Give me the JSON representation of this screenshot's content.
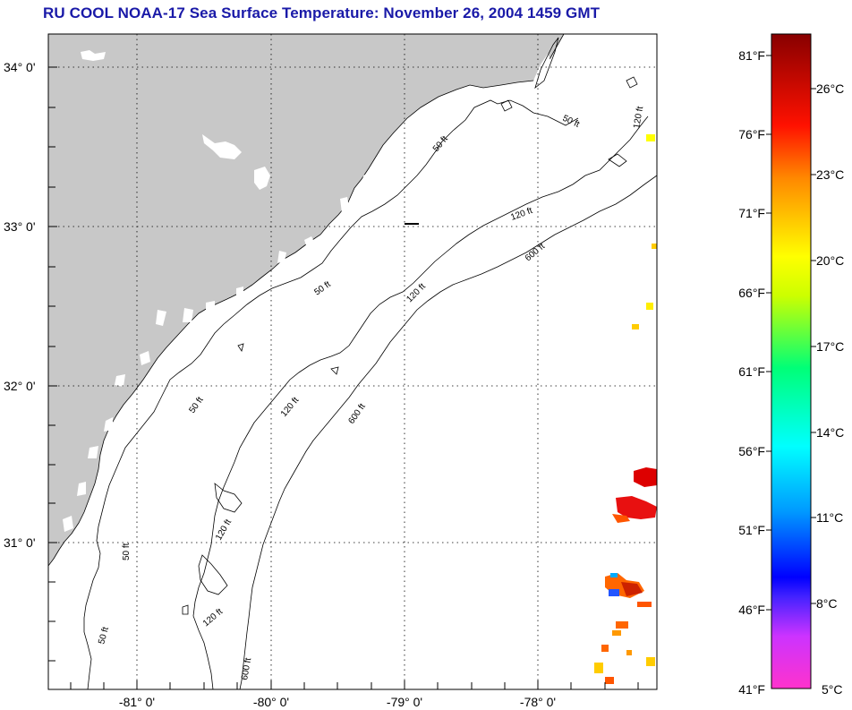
{
  "title": "RU COOL  NOAA-17  Sea Surface Temperature:  November 26, 2004 1459 GMT",
  "map": {
    "lon_labels": [
      "-81° 0'",
      "-80° 0'",
      "-79° 0'",
      "-78° 0'"
    ],
    "lat_labels": [
      "34° 0'",
      "33° 0'",
      "32° 0'",
      "31° 0'"
    ],
    "lon_values": [
      -81,
      -80,
      -79,
      -78
    ],
    "lat_values": [
      34,
      33,
      32,
      31
    ],
    "contour_labels": [
      "50 ft",
      "120 ft",
      "600 ft"
    ],
    "land_color": "#c8c8c8",
    "cloud_color": "#ffffff"
  },
  "colorbar": {
    "fahrenheit_labels": [
      "81°F",
      "76°F",
      "71°F",
      "66°F",
      "61°F",
      "56°F",
      "51°F",
      "46°F",
      "41°F"
    ],
    "celsius_labels": [
      "26°C",
      "23°C",
      "20°C",
      "17°C",
      "14°C",
      "11°C",
      "8°C",
      "5°C"
    ],
    "stops": [
      "#ff33cc",
      "#9933ee",
      "#0000ff",
      "#0099ff",
      "#00ffff",
      "#00ff66",
      "#ccff00",
      "#ffff00",
      "#ff9900",
      "#ff0000",
      "#880000"
    ]
  }
}
